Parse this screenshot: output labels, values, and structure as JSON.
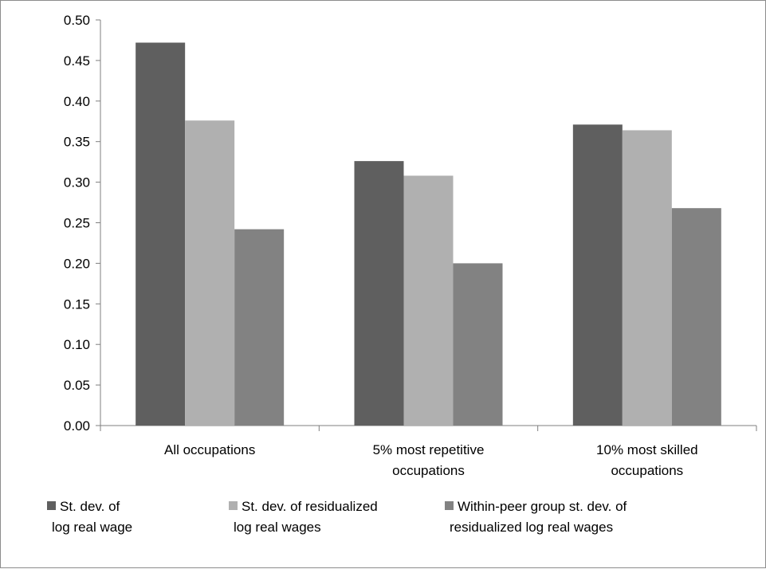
{
  "chart_data": {
    "type": "bar",
    "categories": [
      [
        "All occupations"
      ],
      [
        "5% most repetitive",
        "occupations"
      ],
      [
        "10% most skilled",
        "occupations"
      ]
    ],
    "series": [
      {
        "name": [
          "St. dev. of",
          "log real wage"
        ],
        "color": "#5f5f5f",
        "values": [
          0.472,
          0.326,
          0.371
        ]
      },
      {
        "name": [
          "St. dev. of residualized",
          "log real wages"
        ],
        "color": "#b0b0b0",
        "values": [
          0.376,
          0.308,
          0.364
        ]
      },
      {
        "name": [
          "Within-peer group st. dev. of",
          "residualized  log real wages"
        ],
        "color": "#828282",
        "values": [
          0.242,
          0.2,
          0.268
        ]
      }
    ],
    "ylim": [
      0,
      0.5
    ],
    "yticks": [
      "0.00",
      "0.05",
      "0.10",
      "0.15",
      "0.20",
      "0.25",
      "0.30",
      "0.35",
      "0.40",
      "0.45",
      "0.50"
    ],
    "grid": false,
    "legend_position": "bottom"
  }
}
